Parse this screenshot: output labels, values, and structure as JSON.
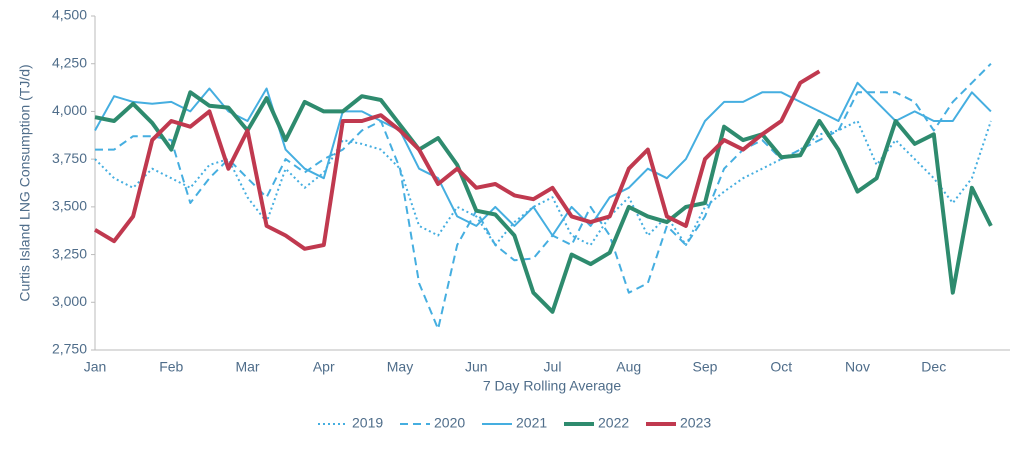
{
  "chart_data": {
    "type": "line",
    "ylabel": "Curtis Island LNG Consumption (TJ/d)",
    "xlabel": "7 Day Rolling Average",
    "categories": [
      "Jan",
      null,
      null,
      null,
      "Feb",
      null,
      null,
      null,
      "Mar",
      null,
      null,
      null,
      "Apr",
      null,
      null,
      null,
      "May",
      null,
      null,
      null,
      "Jun",
      null,
      null,
      null,
      "Jul",
      null,
      null,
      null,
      "Aug",
      null,
      null,
      null,
      "Sep",
      null,
      null,
      null,
      "Oct",
      null,
      null,
      null,
      "Nov",
      null,
      null,
      null,
      "Dec",
      null,
      null,
      null
    ],
    "ylim": [
      2750,
      4500
    ],
    "yticks": [
      {
        "value": 2750,
        "label": "2,750"
      },
      {
        "value": 3000,
        "label": "3,000"
      },
      {
        "value": 3250,
        "label": "3,250"
      },
      {
        "value": 3500,
        "label": "3,500"
      },
      {
        "value": 3750,
        "label": "3,750"
      },
      {
        "value": 4000,
        "label": "4,000"
      },
      {
        "value": 4250,
        "label": "4,250"
      },
      {
        "value": 4500,
        "label": "4,500"
      }
    ],
    "grid": false,
    "legend": "bottom",
    "series": [
      {
        "name": "2019",
        "color": "#45aee0",
        "style": "dotted",
        "line_width": 2,
        "values": [
          3750,
          3650,
          3600,
          3700,
          3650,
          3600,
          3720,
          3750,
          3550,
          3420,
          3700,
          3600,
          3680,
          3850,
          3830,
          3800,
          3700,
          3400,
          3350,
          3500,
          3450,
          3300,
          3420,
          3500,
          3550,
          3350,
          3300,
          3450,
          3550,
          3350,
          3450,
          3300,
          3500,
          3580,
          3650,
          3700,
          3750,
          3800,
          3880,
          3900,
          3950,
          3720,
          3850,
          3750,
          3650,
          3520,
          3650,
          3950
        ]
      },
      {
        "name": "2020",
        "color": "#45aee0",
        "style": "dashed",
        "line_width": 2,
        "values": [
          3800,
          3800,
          3870,
          3870,
          3850,
          3520,
          3650,
          3750,
          3650,
          3550,
          3750,
          3680,
          3750,
          3800,
          3900,
          3950,
          3700,
          3100,
          2860,
          3300,
          3480,
          3300,
          3220,
          3230,
          3350,
          3300,
          3500,
          3350,
          3050,
          3100,
          3400,
          3300,
          3450,
          3700,
          3800,
          3850,
          3750,
          3800,
          3850,
          3900,
          4100,
          4100,
          4100,
          4050,
          3900,
          4050,
          4150,
          4250
        ]
      },
      {
        "name": "2021",
        "color": "#45aee0",
        "style": "solid",
        "line_width": 2,
        "values": [
          3900,
          4080,
          4050,
          4040,
          4050,
          4000,
          4120,
          4000,
          3950,
          4120,
          3800,
          3700,
          3650,
          4000,
          4000,
          3950,
          3900,
          3700,
          3650,
          3450,
          3400,
          3500,
          3400,
          3500,
          3350,
          3500,
          3400,
          3550,
          3600,
          3700,
          3650,
          3750,
          3950,
          4050,
          4050,
          4100,
          4100,
          4050,
          4000,
          3950,
          4150,
          4050,
          3950,
          4000,
          3950,
          3950,
          4100,
          4000
        ]
      },
      {
        "name": "2022",
        "color": "#2e8b6e",
        "style": "solid",
        "line_width": 4,
        "values": [
          3970,
          3950,
          4040,
          3940,
          3800,
          4100,
          4030,
          4020,
          3900,
          4070,
          3850,
          4050,
          4000,
          4000,
          4080,
          4060,
          3930,
          3800,
          3860,
          3720,
          3480,
          3460,
          3350,
          3050,
          2950,
          3250,
          3200,
          3260,
          3500,
          3450,
          3420,
          3500,
          3520,
          3920,
          3850,
          3880,
          3760,
          3770,
          3950,
          3800,
          3580,
          3650,
          3950,
          3830,
          3880,
          3050,
          3600,
          3400
        ]
      },
      {
        "name": "2023",
        "color": "#c0394f",
        "style": "solid",
        "line_width": 4,
        "values": [
          3380,
          3320,
          3450,
          3850,
          3950,
          3920,
          4000,
          3700,
          3900,
          3400,
          3350,
          3280,
          3300,
          3950,
          3950,
          3980,
          3900,
          3800,
          3620,
          3700,
          3600,
          3620,
          3560,
          3540,
          3600,
          3450,
          3420,
          3450,
          3700,
          3800,
          3450,
          3400,
          3750,
          3850,
          3800,
          3880,
          3950,
          4150,
          4210,
          null,
          null,
          null,
          null,
          null,
          null,
          null,
          null,
          null
        ]
      }
    ]
  }
}
